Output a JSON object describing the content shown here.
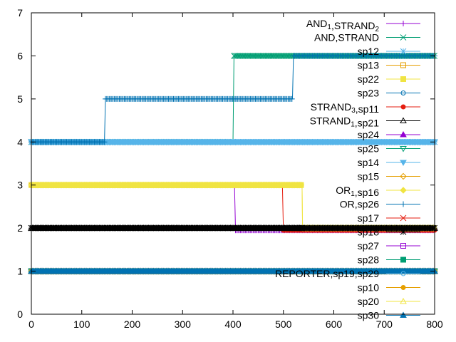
{
  "chart_data": {
    "type": "line",
    "title": "",
    "xlabel": "",
    "ylabel": "",
    "xlim": [
      0,
      800
    ],
    "ylim": [
      0,
      7
    ],
    "xticks": [
      "0",
      "100",
      "200",
      "300",
      "400",
      "500",
      "600",
      "700",
      "800"
    ],
    "yticks": [
      "0",
      "1",
      "2",
      "3",
      "4",
      "5",
      "6",
      "7"
    ],
    "grid": false,
    "legend_position": "top-right",
    "series": [
      {
        "name": "AND 1,STRAND 2",
        "label_parts": [
          [
            "AND",
            ""
          ],
          [
            "1",
            "sub"
          ],
          [
            ",STRAND",
            ""
          ],
          [
            "2",
            "sub"
          ]
        ],
        "color": "#9400d3",
        "marker": "plus",
        "x": [
          0,
          403,
          405,
          800
        ],
        "y": [
          3,
          3,
          1.95,
          1.95
        ]
      },
      {
        "name": "AND,STRAND",
        "label_parts": [
          [
            "AND,STRAND",
            ""
          ]
        ],
        "color": "#009e73",
        "marker": "cross",
        "x": [
          0,
          400,
          402,
          800
        ],
        "y": [
          4,
          4,
          6,
          6
        ]
      },
      {
        "name": "sp12",
        "label_parts": [
          [
            "sp12",
            ""
          ]
        ],
        "color": "#56b4e9",
        "marker": "star",
        "x": [
          0,
          800
        ],
        "y": [
          4,
          4
        ]
      },
      {
        "name": "sp13",
        "label_parts": [
          [
            "sp13",
            ""
          ]
        ],
        "color": "#e69f00",
        "marker": "square",
        "x": [
          0,
          800
        ],
        "y": [
          1,
          1
        ]
      },
      {
        "name": "sp22",
        "label_parts": [
          [
            "sp22",
            ""
          ]
        ],
        "color": "#f0e442",
        "marker": "square-filled",
        "x": [
          0,
          537,
          538,
          800
        ],
        "y": [
          3,
          3,
          2,
          2
        ]
      },
      {
        "name": "sp23",
        "label_parts": [
          [
            "sp23",
            ""
          ]
        ],
        "color": "#0072b2",
        "marker": "circle",
        "x": [
          0,
          800
        ],
        "y": [
          1,
          1
        ]
      },
      {
        "name": "STRAND 3,sp11",
        "label_parts": [
          [
            "STRAND",
            ""
          ],
          [
            "3",
            "sub"
          ],
          [
            ",sp11",
            ""
          ]
        ],
        "color": "#e51e10",
        "marker": "circle-filled",
        "x": [
          0,
          498,
          500,
          800
        ],
        "y": [
          3,
          3,
          1.95,
          1.95
        ]
      },
      {
        "name": "STRAND 1,sp21",
        "label_parts": [
          [
            "STRAND",
            ""
          ],
          [
            "1",
            "sub"
          ],
          [
            ",sp21",
            ""
          ]
        ],
        "color": "#000000",
        "marker": "triangle",
        "x": [
          0,
          800
        ],
        "y": [
          2,
          2
        ]
      },
      {
        "name": "sp24",
        "label_parts": [
          [
            "sp24",
            ""
          ]
        ],
        "color": "#9400d3",
        "marker": "triangle-filled",
        "x": [
          0,
          800
        ],
        "y": [
          1,
          1
        ]
      },
      {
        "name": "sp25",
        "label_parts": [
          [
            "sp25",
            ""
          ]
        ],
        "color": "#009e73",
        "marker": "triangle-down",
        "x": [
          0,
          800
        ],
        "y": [
          1,
          1
        ]
      },
      {
        "name": "sp14",
        "label_parts": [
          [
            "sp14",
            ""
          ]
        ],
        "color": "#56b4e9",
        "marker": "triangle-down-filled",
        "x": [
          0,
          800
        ],
        "y": [
          4,
          4
        ]
      },
      {
        "name": "sp15",
        "label_parts": [
          [
            "sp15",
            ""
          ]
        ],
        "color": "#e69f00",
        "marker": "diamond",
        "x": [
          0,
          800
        ],
        "y": [
          1,
          1
        ]
      },
      {
        "name": "OR 1,sp16",
        "label_parts": [
          [
            "OR",
            ""
          ],
          [
            "1",
            "sub"
          ],
          [
            ",sp16",
            ""
          ]
        ],
        "color": "#f0e442",
        "marker": "diamond-filled",
        "x": [
          0,
          537,
          538,
          800
        ],
        "y": [
          3,
          3,
          2,
          2
        ]
      },
      {
        "name": "OR,sp26",
        "label_parts": [
          [
            "OR,sp26",
            ""
          ]
        ],
        "color": "#0072b2",
        "marker": "plus",
        "x": [
          0,
          145,
          147,
          518,
          520,
          800
        ],
        "y": [
          4,
          4,
          5,
          5,
          6,
          6
        ]
      },
      {
        "name": "sp17",
        "label_parts": [
          [
            "sp17",
            ""
          ]
        ],
        "color": "#e51e10",
        "marker": "cross",
        "x": [
          0,
          800
        ],
        "y": [
          1,
          1
        ]
      },
      {
        "name": "sp18",
        "label_parts": [
          [
            "sp18",
            ""
          ]
        ],
        "color": "#000000",
        "marker": "star",
        "x": [
          0,
          535,
          537,
          800
        ],
        "y": [
          2,
          2,
          2,
          2
        ]
      },
      {
        "name": "sp27",
        "label_parts": [
          [
            "sp27",
            ""
          ]
        ],
        "color": "#9400d3",
        "marker": "square",
        "x": [
          0,
          800
        ],
        "y": [
          1,
          1
        ]
      },
      {
        "name": "sp28",
        "label_parts": [
          [
            "sp28",
            ""
          ]
        ],
        "color": "#009e73",
        "marker": "square-filled",
        "x": [
          0,
          800
        ],
        "y": [
          1,
          1
        ]
      },
      {
        "name": "REPORTER,sp19,sp29",
        "label_parts": [
          [
            "REPORTER,sp19,sp29",
            ""
          ]
        ],
        "color": "#56b4e9",
        "marker": "circle",
        "x": [
          0,
          800
        ],
        "y": [
          1,
          1
        ]
      },
      {
        "name": "sp10",
        "label_parts": [
          [
            "sp10",
            ""
          ]
        ],
        "color": "#e69f00",
        "marker": "circle-filled",
        "x": [
          0,
          800
        ],
        "y": [
          1,
          1
        ]
      },
      {
        "name": "sp20",
        "label_parts": [
          [
            "sp20",
            ""
          ]
        ],
        "color": "#f0e442",
        "marker": "triangle",
        "x": [
          0,
          800
        ],
        "y": [
          1,
          1
        ]
      },
      {
        "name": "sp30",
        "label_parts": [
          [
            "sp30",
            ""
          ]
        ],
        "color": "#0072b2",
        "marker": "triangle-filled",
        "x": [
          0,
          800
        ],
        "y": [
          1,
          1
        ]
      }
    ]
  }
}
